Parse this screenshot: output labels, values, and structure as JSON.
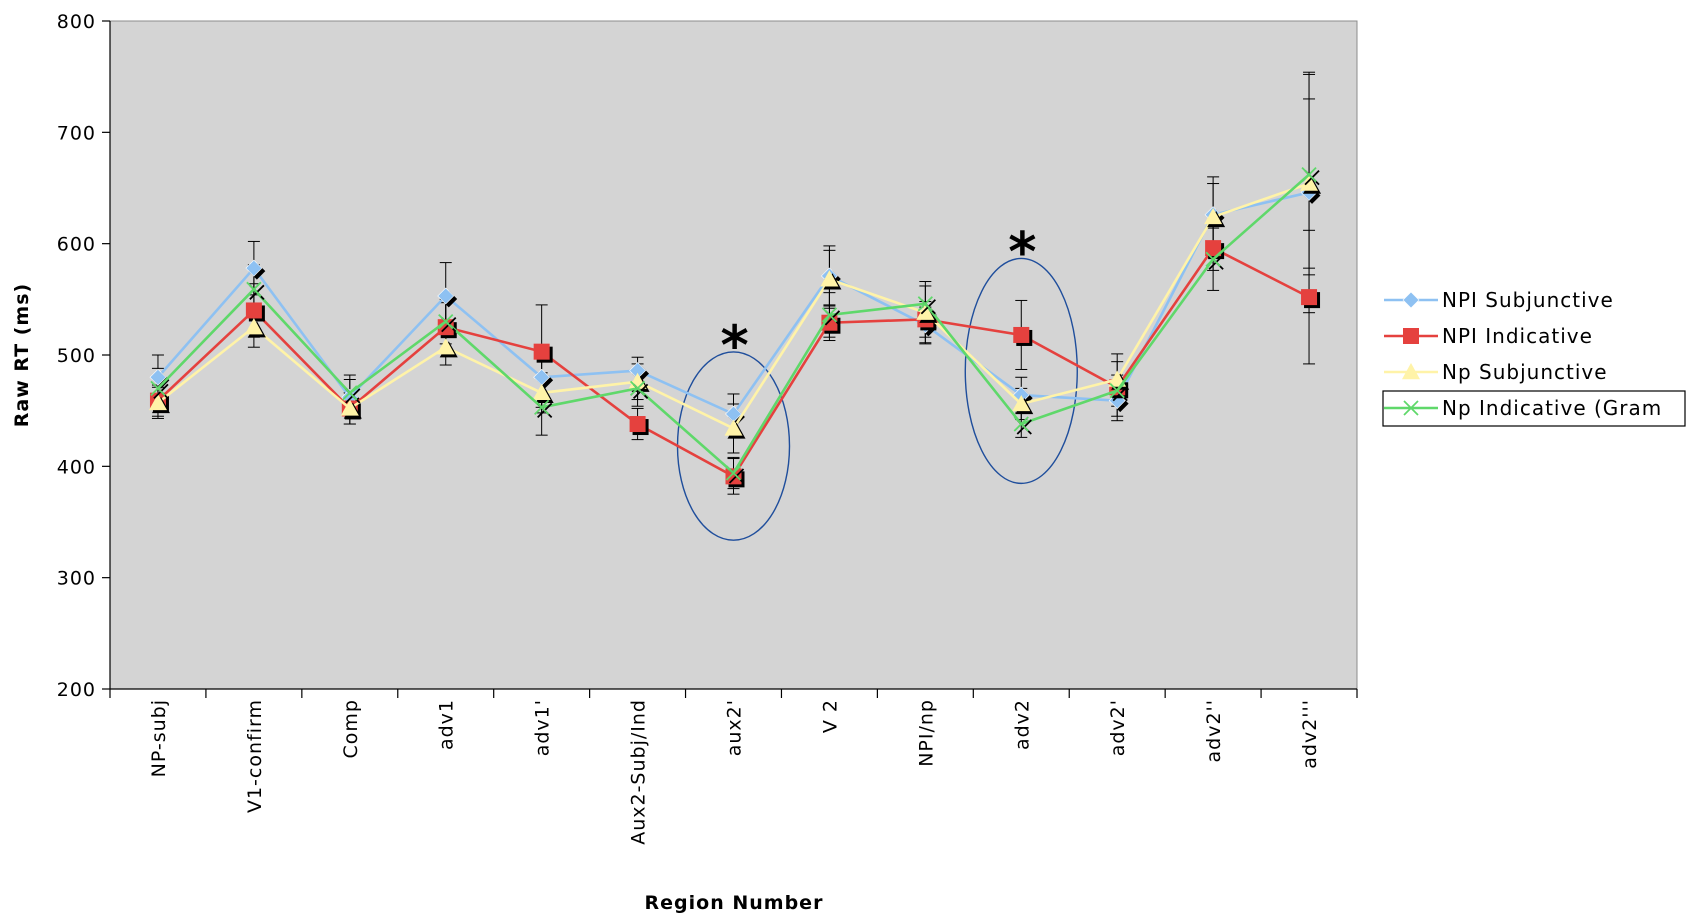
{
  "chart_data": {
    "type": "line",
    "xlabel": "Region Number",
    "ylabel": "Raw RT (ms)",
    "ylim": [
      200,
      800
    ],
    "yticks": [
      200,
      300,
      400,
      500,
      600,
      700,
      800
    ],
    "categories": [
      "NP-subj",
      "V1-confirm",
      "Comp",
      "adv1",
      "adv1'",
      "Aux2-Subj/Ind",
      "aux2'",
      "V 2",
      "NPI/np",
      "adv2",
      "adv2'",
      "adv2''",
      "adv2'''"
    ],
    "grid": false,
    "plot_background": "#d4d4d4",
    "legend_position": "right",
    "series": [
      {
        "name": "NPI Subjunctive",
        "color": "#8ec1f2",
        "marker": "diamond",
        "values": [
          480,
          578,
          462,
          553,
          480,
          486,
          447,
          571,
          527,
          464,
          459,
          626,
          646
        ],
        "errors": [
          20,
          24,
          16,
          30,
          27,
          12,
          18,
          27,
          16,
          16,
          14,
          34,
          108
        ]
      },
      {
        "name": "NPI Indicative",
        "color": "#e5413e",
        "marker": "square",
        "values": [
          459,
          540,
          452,
          525,
          503,
          438,
          391,
          529,
          532,
          518,
          471,
          596,
          552
        ],
        "errors": [
          14,
          24,
          14,
          22,
          42,
          14,
          16,
          16,
          16,
          31,
          30,
          20,
          60
        ]
      },
      {
        "name": "Np Subjunctive",
        "color": "#fff3a8",
        "marker": "triangle",
        "values": [
          457,
          525,
          452,
          507,
          466,
          476,
          434,
          568,
          538,
          456,
          478,
          624,
          654
        ],
        "errors": [
          14,
          18,
          14,
          16,
          18,
          16,
          22,
          26,
          28,
          14,
          16,
          30,
          76
        ]
      },
      {
        "name": "Np Indicative (Gram",
        "color": "#5fd86a",
        "marker": "x",
        "values": [
          470,
          559,
          466,
          530,
          453,
          470,
          394,
          536,
          546,
          438,
          468,
          586,
          662
        ],
        "errors": [
          18,
          22,
          16,
          20,
          25,
          16,
          14,
          20,
          16,
          12,
          14,
          28,
          90
        ]
      }
    ],
    "annotations": [
      {
        "text": "*",
        "category": "aux2'"
      },
      {
        "text": "*",
        "category": "adv2"
      }
    ]
  }
}
